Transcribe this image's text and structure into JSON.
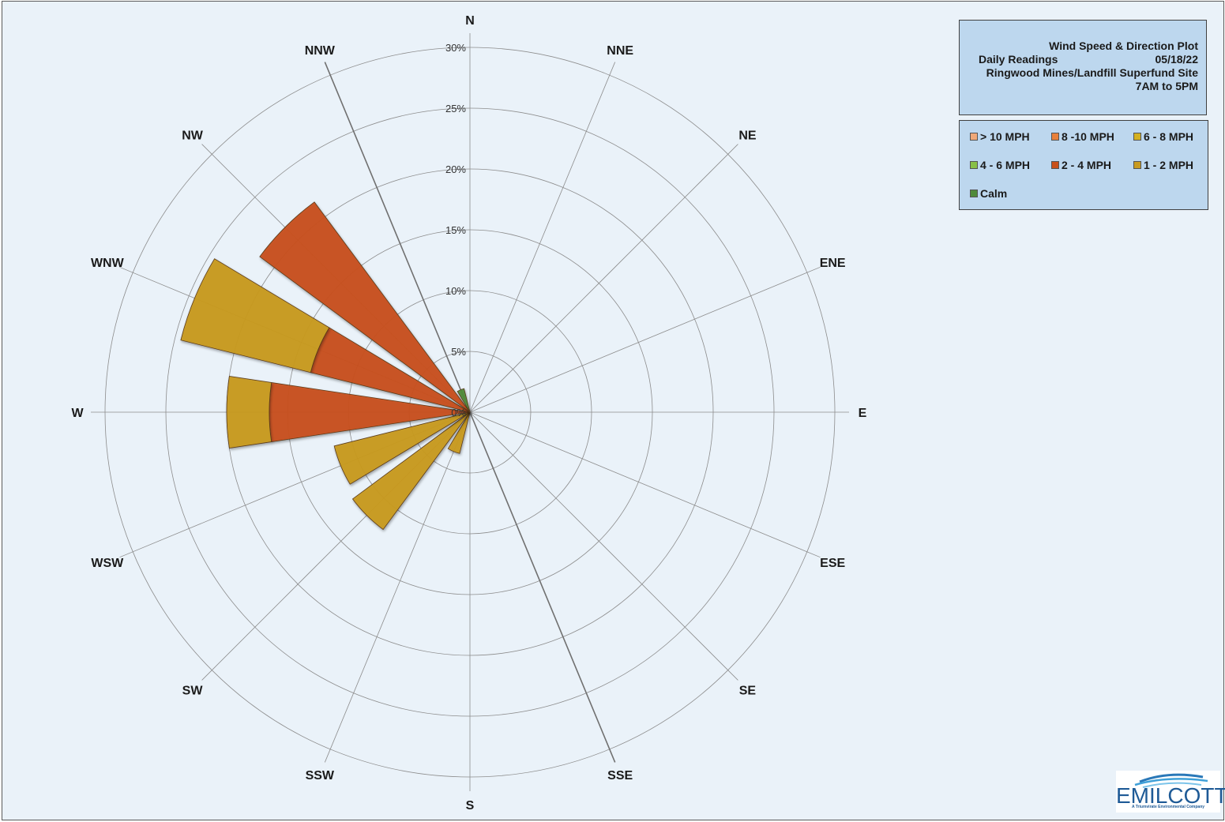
{
  "chart_data": {
    "type": "radar",
    "title": "Wind Speed & Direction Plot",
    "subtitle_left": "Daily Readings",
    "date": "05/18/22",
    "site": "Ringwood Mines/Landfill Superfund Site",
    "hours": "7AM to 5PM",
    "radial_ticks": [
      "0%",
      "5%",
      "10%",
      "15%",
      "20%",
      "25%",
      "30%"
    ],
    "radial_max": 30,
    "directions": [
      "N",
      "NNE",
      "NE",
      "ENE",
      "E",
      "ESE",
      "SE",
      "SSE",
      "S",
      "SSW",
      "SW",
      "WSW",
      "W",
      "WNW",
      "NW",
      "NNW"
    ],
    "legend_position": "top-right",
    "series": [
      {
        "name": "> 10 MPH",
        "color": "#f0a878",
        "values": [
          0,
          0,
          0,
          0,
          0,
          0,
          0,
          0,
          0,
          0,
          0,
          0,
          0,
          0,
          0,
          0
        ]
      },
      {
        "name": "8 -10 MPH",
        "color": "#e8803a",
        "values": [
          0,
          0,
          0,
          0,
          0,
          0,
          0,
          0,
          0,
          0,
          0,
          0,
          0,
          0,
          0,
          0
        ]
      },
      {
        "name": "6 - 8 MPH",
        "color": "#d4b020",
        "values": [
          0,
          0,
          0,
          0,
          0,
          0,
          0,
          0,
          0,
          0,
          0,
          0,
          0,
          0,
          0,
          0
        ]
      },
      {
        "name": "4 - 6 MPH",
        "color": "#88c048",
        "values": [
          0,
          0,
          0,
          0,
          0,
          0,
          0,
          0,
          0,
          0,
          0,
          0,
          0,
          0,
          0,
          0
        ]
      },
      {
        "name": "2 - 4 MPH",
        "color": "#c8501a",
        "values": [
          0,
          0,
          0,
          0,
          0,
          0,
          0,
          0,
          0,
          0,
          0,
          0,
          16.5,
          13.5,
          21.5,
          0
        ]
      },
      {
        "name": "1 - 2 MPH",
        "color": "#c89a20",
        "values": [
          0,
          0,
          0,
          0,
          0,
          0,
          0,
          0,
          0,
          3.5,
          12,
          11.5,
          3.5,
          11,
          0,
          0
        ]
      },
      {
        "name": "Calm",
        "color": "#4f8a3a",
        "values": [
          0,
          0,
          0,
          0,
          0,
          0,
          0,
          0,
          0,
          0,
          0,
          0,
          0,
          0,
          0,
          2
        ]
      }
    ]
  },
  "logo": {
    "text": "EMILCOTT",
    "tagline": "A Triumvirate Environmental Company"
  }
}
